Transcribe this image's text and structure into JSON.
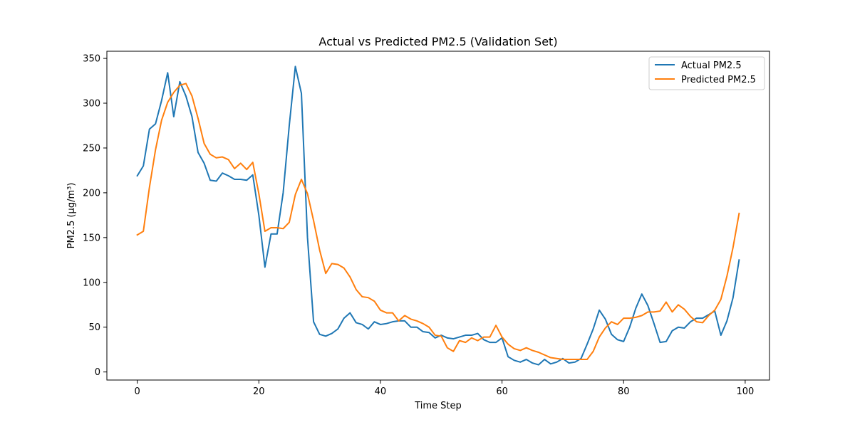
{
  "chart_data": {
    "type": "line",
    "title": "Actual vs Predicted PM2.5 (Validation Set)",
    "xlabel": "Time Step",
    "ylabel": "PM2.5 (μg/m³)",
    "xlim": [
      -5,
      104
    ],
    "ylim": [
      -9,
      358
    ],
    "xticks": [
      0,
      20,
      40,
      60,
      80,
      100
    ],
    "yticks": [
      0,
      50,
      100,
      150,
      200,
      250,
      300,
      350
    ],
    "grid": false,
    "legend_position": "top-right",
    "series": [
      {
        "name": "Actual PM2.5",
        "color": "#1f77b4",
        "values": [
          219,
          230,
          271,
          277,
          303,
          334,
          285,
          324,
          308,
          285,
          245,
          233,
          214,
          213,
          222,
          219,
          215,
          215,
          214,
          220,
          175,
          117,
          154,
          154,
          200,
          275,
          341,
          311,
          150,
          56,
          42,
          40,
          43,
          48,
          60,
          66,
          55,
          53,
          48,
          56,
          53,
          54,
          56,
          57,
          57,
          50,
          50,
          45,
          44,
          38,
          41,
          38,
          37,
          39,
          41,
          41,
          43,
          36,
          33,
          33,
          38,
          17,
          13,
          11,
          14,
          10,
          8,
          14,
          9,
          11,
          15,
          10,
          11,
          15,
          31,
          48,
          69,
          59,
          42,
          36,
          34,
          50,
          71,
          87,
          74,
          54,
          33,
          34,
          46,
          50,
          49,
          56,
          60,
          60,
          64,
          68,
          41,
          57,
          83,
          125
        ]
      },
      {
        "name": "Predicted PM2.5",
        "color": "#ff7f0e",
        "values": [
          153,
          157,
          206,
          248,
          281,
          301,
          312,
          320,
          322,
          308,
          283,
          255,
          243,
          239,
          240,
          237,
          227,
          233,
          226,
          234,
          199,
          157,
          161,
          161,
          160,
          167,
          198,
          215,
          199,
          169,
          136,
          110,
          121,
          120,
          116,
          106,
          92,
          84,
          83,
          79,
          69,
          66,
          66,
          57,
          63,
          59,
          57,
          54,
          50,
          41,
          40,
          27,
          23,
          35,
          33,
          38,
          35,
          39,
          39,
          52,
          39,
          31,
          26,
          24,
          27,
          24,
          22,
          19,
          16,
          15,
          14,
          14,
          14,
          14,
          14,
          23,
          39,
          49,
          56,
          53,
          60,
          60,
          61,
          63,
          67,
          67,
          68,
          78,
          67,
          75,
          70,
          62,
          56,
          55,
          63,
          69,
          81,
          107,
          139,
          177
        ]
      }
    ]
  }
}
